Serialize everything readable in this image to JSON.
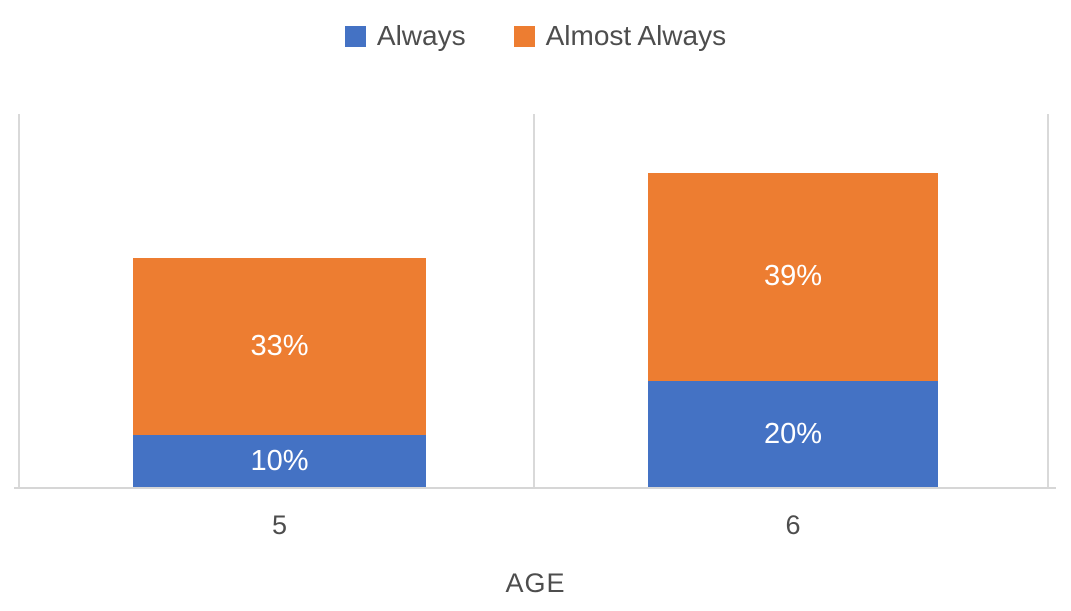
{
  "legend": {
    "items": [
      {
        "label": "Always",
        "color": "#4472C4"
      },
      {
        "label": "Almost Always",
        "color": "#ED7D31"
      }
    ]
  },
  "axis": {
    "x_title": "AGE",
    "tick_labels": [
      "5",
      "6"
    ]
  },
  "chart_data": {
    "type": "bar",
    "stacked": true,
    "categories": [
      "5",
      "6"
    ],
    "series": [
      {
        "name": "Always",
        "color": "#4472C4",
        "values": [
          10,
          20
        ]
      },
      {
        "name": "Almost Always",
        "color": "#ED7D31",
        "values": [
          33,
          39
        ]
      }
    ],
    "data_labels": [
      [
        "10%",
        "20%"
      ],
      [
        "33%",
        "39%"
      ]
    ],
    "title": "",
    "xlabel": "AGE",
    "ylabel": "",
    "ylim": [
      0,
      70
    ],
    "grid": "vertical category separator lines only, no horizontal gridlines, no y-axis labels",
    "legend_position": "top-center",
    "data_label_color": "#ffffff"
  },
  "colors": {
    "background": "#ffffff",
    "axis_line": "#d9d9d9",
    "text": "#4d4d4d"
  }
}
